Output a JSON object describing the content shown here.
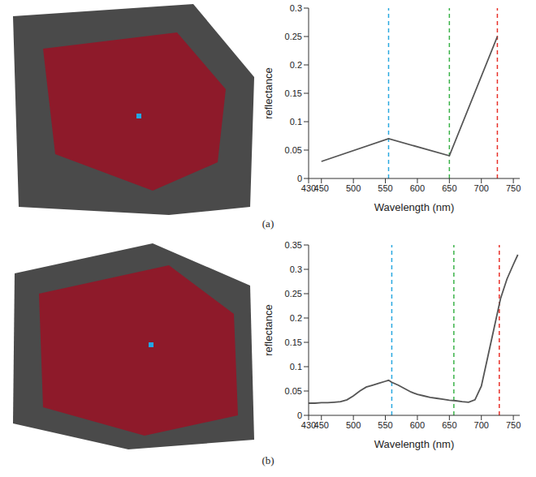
{
  "chart_data": [
    {
      "type": "line",
      "panel_label": "(a)",
      "xlabel": "Wavelength (nm)",
      "ylabel": "reflectance",
      "xlim": [
        430,
        760
      ],
      "xticks": [
        430,
        450,
        500,
        550,
        600,
        650,
        700,
        750
      ],
      "ylim": [
        0,
        0.3
      ],
      "yticks": [
        0,
        0.05,
        0.1,
        0.15,
        0.2,
        0.25,
        0.3
      ],
      "series": [
        {
          "color": "#555555",
          "x": [
            450,
            555,
            650,
            725
          ],
          "values": [
            0.03,
            0.07,
            0.04,
            0.25
          ]
        }
      ],
      "vlines": [
        {
          "x": 555,
          "color": "#29a8e0",
          "line_style": "dashed"
        },
        {
          "x": 650,
          "color": "#3cb34a",
          "line_style": "dashed"
        },
        {
          "x": 725,
          "color": "#e8312a",
          "line_style": "dashed"
        }
      ]
    },
    {
      "type": "line",
      "panel_label": "(b)",
      "xlabel": "Wavelength (nm)",
      "ylabel": "reflectance",
      "xlim": [
        430,
        760
      ],
      "xticks": [
        430,
        450,
        500,
        550,
        600,
        650,
        700,
        750
      ],
      "ylim": [
        0,
        0.35
      ],
      "yticks": [
        0,
        0.05,
        0.1,
        0.15,
        0.2,
        0.25,
        0.3,
        0.35
      ],
      "series": [
        {
          "color": "#555555",
          "x": [
            430,
            440,
            450,
            460,
            470,
            480,
            490,
            500,
            510,
            520,
            530,
            540,
            550,
            555,
            560,
            570,
            580,
            590,
            600,
            610,
            620,
            630,
            640,
            650,
            660,
            670,
            680,
            690,
            700,
            710,
            720,
            730,
            740,
            750,
            757
          ],
          "values": [
            0.025,
            0.025,
            0.026,
            0.026,
            0.027,
            0.028,
            0.032,
            0.04,
            0.05,
            0.058,
            0.062,
            0.066,
            0.07,
            0.072,
            0.068,
            0.062,
            0.055,
            0.048,
            0.043,
            0.04,
            0.037,
            0.035,
            0.033,
            0.031,
            0.03,
            0.028,
            0.027,
            0.032,
            0.06,
            0.12,
            0.18,
            0.24,
            0.28,
            0.31,
            0.33
          ]
        }
      ],
      "vlines": [
        {
          "x": 560,
          "color": "#29a8e0",
          "line_style": "dashed"
        },
        {
          "x": 657,
          "color": "#3cb34a",
          "line_style": "dashed"
        },
        {
          "x": 728,
          "color": "#e8312a",
          "line_style": "dashed"
        }
      ]
    }
  ]
}
